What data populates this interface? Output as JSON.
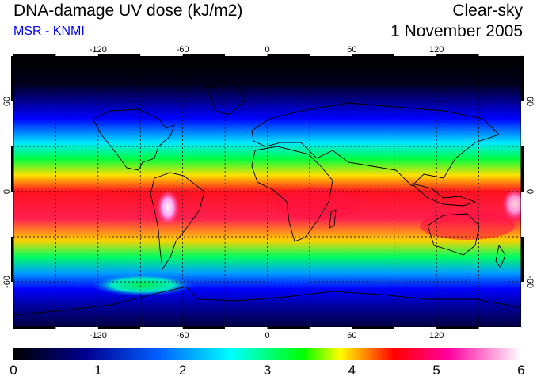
{
  "header": {
    "title": "DNA-damage UV dose (kJ/m2)",
    "subtitle": "MSR - KNMI",
    "condition": "Clear-sky",
    "date": "1 November 2005"
  },
  "map": {
    "lon_ticks": [
      -120,
      -60,
      0,
      60,
      120
    ],
    "lat_ticks": [
      60,
      0,
      -60
    ],
    "lon_range": [
      -180,
      180
    ],
    "lat_range": [
      -90,
      90
    ],
    "graticule": "dashed",
    "projection": "equirectangular"
  },
  "colorbar": {
    "ticks": [
      "0",
      "1",
      "2",
      "3",
      "4",
      "5",
      "6"
    ],
    "range": [
      0,
      6
    ],
    "colors": [
      "#000000",
      "#0000ff",
      "#00ffff",
      "#00ff00",
      "#ffff00",
      "#ff0000",
      "#ff00ff",
      "#ffffff"
    ]
  },
  "colors": {
    "subtitle": "#0000ff",
    "coastline": "#000000"
  }
}
